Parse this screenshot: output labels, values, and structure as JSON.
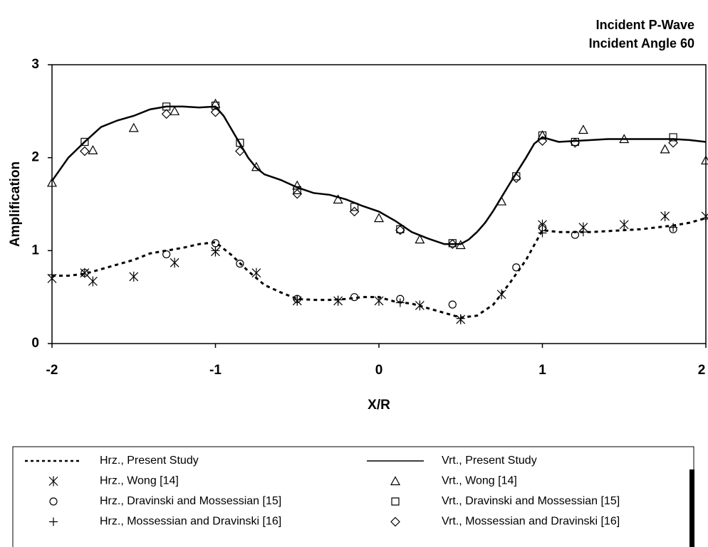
{
  "chart_data": {
    "type": "line",
    "title": "Incident P-Wave",
    "subtitle": "Incident Angle 60",
    "x_label": "X/R",
    "y_label": "Amplification",
    "xlim": [
      -2,
      2
    ],
    "xticks": [
      -2,
      -1,
      0,
      1,
      2
    ],
    "ylim": [
      0,
      3
    ],
    "yticks": [
      0,
      1,
      2,
      3
    ],
    "grid": false,
    "legend": "bottom",
    "series": [
      {
        "name": "Hrz., Present Study",
        "style": "dashed",
        "color": "#000000",
        "x": [
          -2,
          -1.9,
          -1.8,
          -1.7,
          -1.6,
          -1.5,
          -1.4,
          -1.3,
          -1.2,
          -1.1,
          -1,
          -0.9,
          -0.8,
          -0.7,
          -0.6,
          -0.5,
          -0.4,
          -0.3,
          -0.2,
          -0.1,
          0,
          0.1,
          0.2,
          0.3,
          0.4,
          0.5,
          0.6,
          0.7,
          0.8,
          0.9,
          1,
          1.1,
          1.2,
          1.3,
          1.4,
          1.5,
          1.6,
          1.7,
          1.8,
          1.9,
          2
        ],
        "values": [
          0.73,
          0.73,
          0.75,
          0.8,
          0.85,
          0.9,
          0.97,
          1.0,
          1.03,
          1.07,
          1.09,
          0.95,
          0.78,
          0.63,
          0.55,
          0.48,
          0.47,
          0.47,
          0.48,
          0.5,
          0.5,
          0.45,
          0.43,
          0.38,
          0.33,
          0.28,
          0.3,
          0.42,
          0.65,
          0.9,
          1.22,
          1.2,
          1.2,
          1.2,
          1.21,
          1.22,
          1.23,
          1.25,
          1.27,
          1.3,
          1.35
        ]
      },
      {
        "name": "Vrt., Present Study",
        "style": "solid",
        "color": "#000000",
        "x": [
          -2,
          -1.9,
          -1.8,
          -1.7,
          -1.6,
          -1.5,
          -1.4,
          -1.3,
          -1.2,
          -1.1,
          -1,
          -0.95,
          -0.9,
          -0.85,
          -0.8,
          -0.75,
          -0.7,
          -0.6,
          -0.5,
          -0.4,
          -0.3,
          -0.2,
          -0.1,
          0,
          0.1,
          0.2,
          0.3,
          0.4,
          0.5,
          0.55,
          0.6,
          0.65,
          0.7,
          0.8,
          0.9,
          0.95,
          1,
          1.1,
          1.2,
          1.3,
          1.4,
          1.5,
          1.6,
          1.7,
          1.8,
          1.9,
          2
        ],
        "values": [
          1.75,
          2.0,
          2.17,
          2.33,
          2.4,
          2.45,
          2.52,
          2.55,
          2.55,
          2.54,
          2.55,
          2.45,
          2.3,
          2.15,
          2.0,
          1.89,
          1.82,
          1.76,
          1.68,
          1.62,
          1.6,
          1.55,
          1.48,
          1.42,
          1.32,
          1.2,
          1.13,
          1.07,
          1.07,
          1.12,
          1.2,
          1.3,
          1.43,
          1.72,
          2.0,
          2.15,
          2.22,
          2.17,
          2.18,
          2.19,
          2.2,
          2.2,
          2.2,
          2.2,
          2.2,
          2.19,
          2.17
        ]
      },
      {
        "name": "Hrz., Wong [14]",
        "marker": "asterisk",
        "color": "#000000",
        "x": [
          -2,
          -1.8,
          -1.75,
          -1.5,
          -1.25,
          -1,
          -0.75,
          -0.5,
          -0.25,
          0,
          0.25,
          0.5,
          0.75,
          1,
          1.25,
          1.5,
          1.75,
          2
        ],
        "values": [
          0.7,
          0.76,
          0.67,
          0.72,
          0.87,
          0.99,
          0.76,
          0.46,
          0.46,
          0.46,
          0.41,
          0.26,
          0.53,
          1.28,
          1.25,
          1.28,
          1.37,
          1.37
        ]
      },
      {
        "name": "Vrt., Wong [14]",
        "marker": "triangle",
        "color": "#000000",
        "x": [
          -2,
          -1.75,
          -1.5,
          -1.25,
          -1,
          -0.75,
          -0.5,
          -0.25,
          0,
          0.25,
          0.5,
          0.75,
          1,
          1.25,
          1.5,
          1.75,
          2
        ],
        "values": [
          1.73,
          2.08,
          2.32,
          2.5,
          2.58,
          1.9,
          1.7,
          1.55,
          1.35,
          1.12,
          1.06,
          1.53,
          2.24,
          2.3,
          2.2,
          2.09,
          1.97
        ]
      },
      {
        "name": "Hrz., Dravinski and Mossessian [15]",
        "marker": "circle",
        "color": "#000000",
        "x": [
          -1.8,
          -1.3,
          -1,
          -0.85,
          -0.5,
          -0.15,
          0.13,
          0.45,
          0.84,
          1,
          1.2,
          1.8
        ],
        "values": [
          0.76,
          0.96,
          1.08,
          0.86,
          0.48,
          0.5,
          0.48,
          0.42,
          0.82,
          1.25,
          1.17,
          1.23
        ]
      },
      {
        "name": "Vrt., Dravinski and Mossessian [15]",
        "marker": "square",
        "color": "#000000",
        "x": [
          -1.8,
          -1.3,
          -1,
          -0.85,
          -0.5,
          -0.15,
          0.13,
          0.45,
          0.84,
          1,
          1.2,
          1.8
        ],
        "values": [
          2.17,
          2.55,
          2.56,
          2.16,
          1.65,
          1.47,
          1.23,
          1.08,
          1.8,
          2.24,
          2.17,
          2.22
        ]
      },
      {
        "name": "Hrz., Mossessian and Dravinski [16]",
        "marker": "plus",
        "color": "#000000",
        "x": [
          -2,
          -1,
          -0.5,
          -0.25,
          0.13,
          0.5,
          1,
          1.25,
          1.8,
          2
        ],
        "values": [
          0.74,
          1.0,
          0.47,
          0.47,
          0.44,
          0.27,
          1.19,
          1.2,
          1.25,
          1.34
        ]
      },
      {
        "name": "Vrt., Mossessian and Dravinski [16]",
        "marker": "diamond",
        "color": "#000000",
        "x": [
          -1.8,
          -1.3,
          -1,
          -0.85,
          -0.5,
          -0.15,
          0.13,
          0.45,
          0.84,
          1,
          1.2,
          1.8
        ],
        "values": [
          2.07,
          2.47,
          2.49,
          2.07,
          1.61,
          1.42,
          1.22,
          1.07,
          1.78,
          2.18,
          2.16,
          2.16
        ]
      }
    ]
  }
}
